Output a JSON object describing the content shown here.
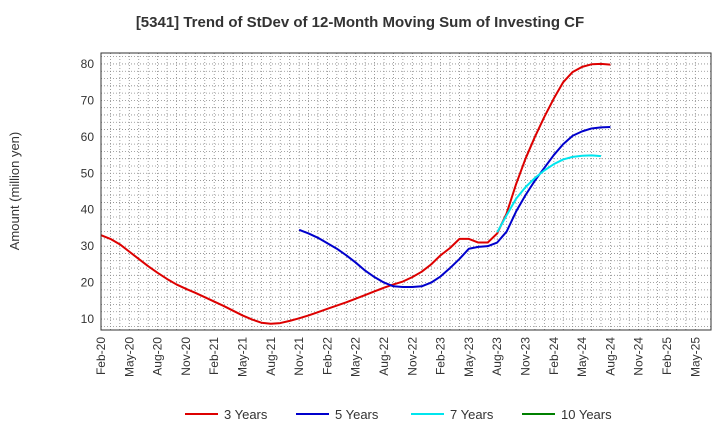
{
  "chart_data": {
    "type": "line",
    "title": "[5341]  Trend of StDev of 12-Month Moving Sum of Investing CF",
    "xlabel": "",
    "ylabel": "Amount (million yen)",
    "ylim": [
      7,
      83
    ],
    "yticks": [
      10,
      20,
      30,
      40,
      50,
      60,
      70,
      80
    ],
    "x_ticks": [
      "Feb-20",
      "May-20",
      "Aug-20",
      "Nov-20",
      "Feb-21",
      "May-21",
      "Aug-21",
      "Nov-21",
      "Feb-22",
      "May-22",
      "Aug-22",
      "Nov-22",
      "Feb-23",
      "May-23",
      "Aug-23",
      "Nov-23",
      "Feb-24",
      "May-24",
      "Aug-24",
      "Nov-24",
      "Feb-25",
      "May-25"
    ],
    "grid": true,
    "legend_position": "bottom",
    "series": [
      {
        "name": "3 Years",
        "color": "#dd0000",
        "start_index": 0,
        "values": [
          33.0,
          32.0,
          30.5,
          28.5,
          26.5,
          24.5,
          22.7,
          21.0,
          19.5,
          18.3,
          17.2,
          16.0,
          14.8,
          13.6,
          12.3,
          11.0,
          9.9,
          9.0,
          8.7,
          8.9,
          9.5,
          10.2,
          11.0,
          11.9,
          12.8,
          13.7,
          14.6,
          15.6,
          16.6,
          17.6,
          18.6,
          19.5,
          20.3,
          21.5,
          23.0,
          25.0,
          27.5,
          29.5,
          32.0,
          32.0,
          31.0,
          31.0,
          33.5,
          39.0,
          47.0,
          54.0,
          60.0,
          65.5,
          70.5,
          75.0,
          77.8,
          79.2,
          79.9,
          80.0,
          79.8
        ]
      },
      {
        "name": "5 Years",
        "color": "#0000cc",
        "start_index": 21,
        "values": [
          34.5,
          33.5,
          32.3,
          30.8,
          29.3,
          27.5,
          25.5,
          23.3,
          21.5,
          20.0,
          19.0,
          18.8,
          18.8,
          19.0,
          20.0,
          21.7,
          24.0,
          26.5,
          29.3,
          29.8,
          30.0,
          31.0,
          34.0,
          39.5,
          44.0,
          48.0,
          51.5,
          55.0,
          58.0,
          60.3,
          61.5,
          62.3,
          62.6,
          62.7
        ]
      },
      {
        "name": "7 Years",
        "color": "#00e5ee",
        "start_index": 42,
        "values": [
          33.8,
          38.5,
          43.0,
          46.2,
          48.7,
          50.8,
          52.5,
          53.8,
          54.5,
          54.8,
          54.9,
          54.7
        ]
      },
      {
        "name": "10 Years",
        "color": "#008000",
        "start_index": 0,
        "values": []
      }
    ]
  }
}
